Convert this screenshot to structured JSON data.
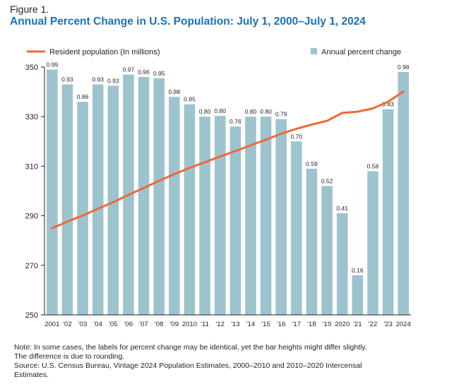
{
  "figure_label": "Figure 1.",
  "title": "Annual Percent Change in U.S. Population: July 1, 2000–July 1, 2024",
  "notes": [
    "Note: In some cases, the labels for percent change may be identical, yet the bar heights might differ slightly.",
    "The difference is due to rounding.",
    "Source: U.S. Census Bureau, Vintage 2024 Population Estimates, 2000–2010 and 2010–2020 Intercensal",
    "Estimates."
  ],
  "colors": {
    "bar": "#9dc3cf",
    "line": "#f0683a",
    "axis": "#231f20",
    "grid": "#e6e6e6"
  },
  "chart_data": {
    "type": "bar",
    "legend": {
      "placement": "top",
      "line_label": "Resident population (In millions)",
      "bar_label": "Annual percent change"
    },
    "categories": [
      "2001",
      "'02",
      "'03",
      "'04",
      "'05",
      "'06",
      "'07",
      "'08",
      "'09",
      "2010",
      "'11",
      "'12",
      "'13",
      "'14",
      "'15",
      "'16",
      "'17",
      "'18",
      "'19",
      "2020",
      "'21",
      "'22",
      "'23",
      "2024"
    ],
    "series": [
      {
        "name": "Annual percent change",
        "type": "bar",
        "labels": [
          "0.99",
          "0.93",
          "0.86",
          "0.93",
          "0.93",
          "0.97",
          "0.96",
          "0.95",
          "0.88",
          "0.85",
          "0.80",
          "0.80",
          "0.76",
          "0.80",
          "0.80",
          "0.79",
          "0.70",
          "0.59",
          "0.52",
          "0.41",
          "0.16",
          "0.58",
          "0.83",
          "0.98"
        ],
        "values": [
          0.99,
          0.93,
          0.86,
          0.93,
          0.925,
          0.97,
          0.96,
          0.955,
          0.88,
          0.85,
          0.8,
          0.803,
          0.76,
          0.8,
          0.8,
          0.79,
          0.7,
          0.59,
          0.52,
          0.41,
          0.16,
          0.58,
          0.83,
          0.98
        ]
      },
      {
        "name": "Resident population (In millions)",
        "type": "line",
        "values": [
          285.0,
          287.6,
          290.1,
          292.8,
          295.5,
          298.4,
          301.2,
          304.1,
          306.8,
          309.3,
          311.6,
          313.9,
          316.1,
          318.4,
          320.7,
          323.1,
          325.1,
          326.8,
          328.3,
          331.5,
          332.0,
          333.3,
          336.0,
          340.1
        ]
      }
    ],
    "yaxis": {
      "ticks": [
        250,
        270,
        290,
        310,
        330,
        350
      ],
      "ylim": [
        250,
        350
      ]
    },
    "bar_scale": {
      "min": 0,
      "max": 1.0
    },
    "grid": false
  }
}
